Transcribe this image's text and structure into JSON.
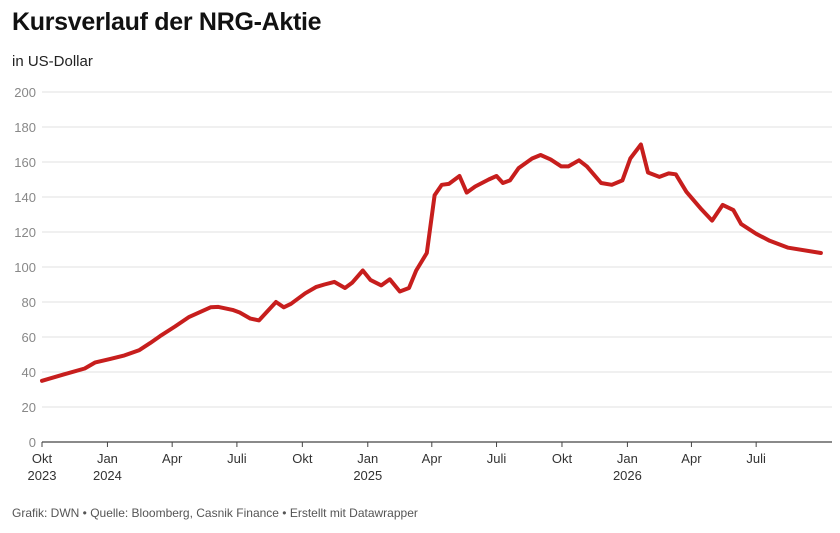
{
  "header": {
    "title": "Kursverlauf der NRG-Aktie",
    "subtitle": "in US-Dollar"
  },
  "footer": {
    "text": "Grafik: DWN • Quelle: Bloomberg, Casnik Finance • Erstellt mit Datawrapper"
  },
  "colors": {
    "line": "#c71e1d",
    "grid": "#e2e2e2",
    "axis": "#444444"
  },
  "chart_data": {
    "type": "line",
    "title": "Kursverlauf der NRG-Aktie",
    "subtitle": "in US-Dollar",
    "xlabel": "",
    "ylabel": "",
    "ylim": [
      0,
      200
    ],
    "yticks": [
      0,
      20,
      40,
      60,
      80,
      100,
      120,
      140,
      160,
      180,
      200
    ],
    "grid": true,
    "legend": "none",
    "xlim": [
      "2023-10-01",
      "2026-10-10"
    ],
    "x_ticks": [
      {
        "date": "2023-10-01",
        "label": "Okt",
        "year": "2023"
      },
      {
        "date": "2024-01-01",
        "label": "Jan",
        "year": "2024"
      },
      {
        "date": "2024-04-01",
        "label": "Apr",
        "year": ""
      },
      {
        "date": "2024-07-01",
        "label": "Juli",
        "year": ""
      },
      {
        "date": "2024-10-01",
        "label": "Okt",
        "year": ""
      },
      {
        "date": "2025-01-01",
        "label": "Jan",
        "year": "2025"
      },
      {
        "date": "2025-04-01",
        "label": "Apr",
        "year": ""
      },
      {
        "date": "2025-07-01",
        "label": "Juli",
        "year": ""
      },
      {
        "date": "2025-10-01",
        "label": "Okt",
        "year": ""
      },
      {
        "date": "2026-01-01",
        "label": "Jan",
        "year": "2026"
      },
      {
        "date": "2026-04-01",
        "label": "Apr",
        "year": ""
      },
      {
        "date": "2026-07-01",
        "label": "Juli",
        "year": ""
      }
    ],
    "series": [
      {
        "points": [
          [
            "2023-10-01",
            35
          ],
          [
            "2023-10-31",
            38.5
          ],
          [
            "2023-11-30",
            42
          ],
          [
            "2023-12-15",
            45.5
          ],
          [
            "2024-01-05",
            47.5
          ],
          [
            "2024-01-25",
            49.5
          ],
          [
            "2024-02-15",
            52.5
          ],
          [
            "2024-03-01",
            56.5
          ],
          [
            "2024-03-15",
            60.5
          ],
          [
            "2024-04-05",
            66
          ],
          [
            "2024-04-25",
            71.5
          ],
          [
            "2024-05-25",
            77
          ],
          [
            "2024-06-05",
            77.2
          ],
          [
            "2024-06-25",
            75.5
          ],
          [
            "2024-07-05",
            74
          ],
          [
            "2024-07-20",
            70.5
          ],
          [
            "2024-08-01",
            69.5
          ],
          [
            "2024-08-25",
            80
          ],
          [
            "2024-09-05",
            77
          ],
          [
            "2024-09-15",
            79
          ],
          [
            "2024-10-05",
            85
          ],
          [
            "2024-10-20",
            88.5
          ],
          [
            "2024-11-01",
            90
          ],
          [
            "2024-11-15",
            91.5
          ],
          [
            "2024-11-30",
            88
          ],
          [
            "2024-12-10",
            91
          ],
          [
            "2024-12-25",
            98
          ],
          [
            "2025-01-05",
            92.5
          ],
          [
            "2025-01-20",
            89.5
          ],
          [
            "2025-02-01",
            93
          ],
          [
            "2025-02-15",
            86
          ],
          [
            "2025-02-28",
            88
          ],
          [
            "2025-03-10",
            98
          ],
          [
            "2025-03-25",
            108
          ],
          [
            "2025-04-05",
            141
          ],
          [
            "2025-04-15",
            147
          ],
          [
            "2025-04-25",
            147.5
          ],
          [
            "2025-05-10",
            152
          ],
          [
            "2025-05-20",
            142.5
          ],
          [
            "2025-06-01",
            146
          ],
          [
            "2025-06-20",
            150
          ],
          [
            "2025-07-01",
            152
          ],
          [
            "2025-07-10",
            148
          ],
          [
            "2025-07-20",
            149.5
          ],
          [
            "2025-08-01",
            156.5
          ],
          [
            "2025-08-20",
            162
          ],
          [
            "2025-09-01",
            164
          ],
          [
            "2025-09-15",
            161.5
          ],
          [
            "2025-09-30",
            157.5
          ],
          [
            "2025-10-10",
            157.5
          ],
          [
            "2025-10-25",
            161
          ],
          [
            "2025-11-05",
            157.5
          ],
          [
            "2025-11-25",
            148
          ],
          [
            "2025-12-10",
            147
          ],
          [
            "2025-12-25",
            149.5
          ],
          [
            "2026-01-05",
            162
          ],
          [
            "2026-01-20",
            170
          ],
          [
            "2026-01-30",
            154
          ],
          [
            "2026-02-15",
            151.5
          ],
          [
            "2026-02-28",
            153.5
          ],
          [
            "2026-03-10",
            153
          ],
          [
            "2026-03-25",
            143
          ],
          [
            "2026-04-15",
            133
          ],
          [
            "2026-04-30",
            126.5
          ],
          [
            "2026-05-15",
            135.5
          ],
          [
            "2026-05-30",
            132.5
          ],
          [
            "2026-06-10",
            124.5
          ],
          [
            "2026-07-01",
            119
          ],
          [
            "2026-07-20",
            115
          ],
          [
            "2026-08-15",
            111
          ],
          [
            "2026-09-30",
            108
          ]
        ]
      }
    ]
  }
}
